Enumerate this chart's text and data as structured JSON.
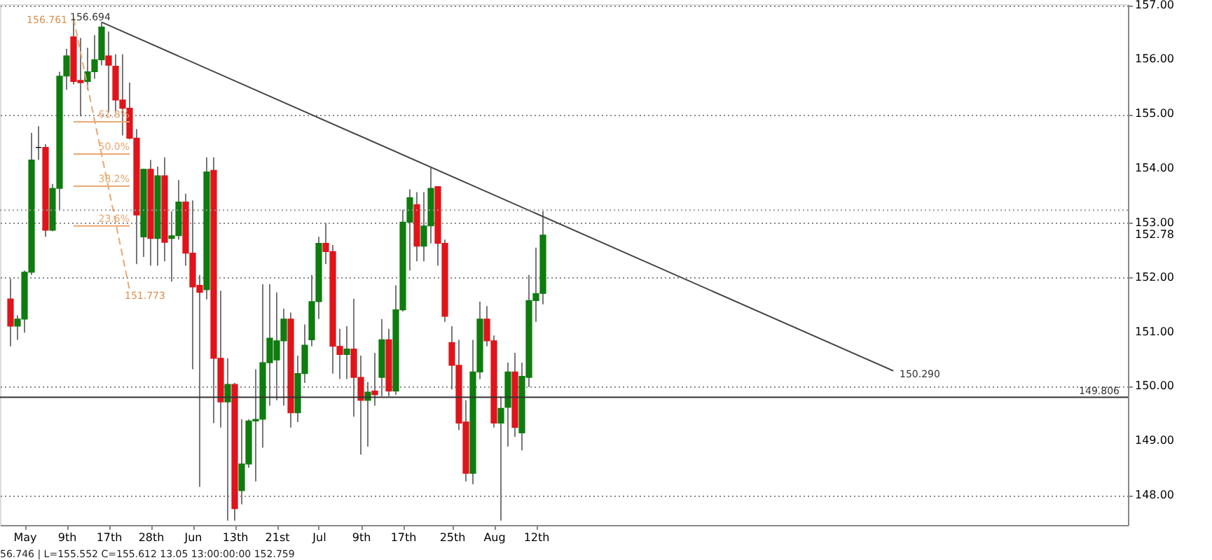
{
  "chart_data": {
    "type": "candlestick",
    "categories": [
      null,
      null,
      "May",
      null,
      null,
      null,
      null,
      null,
      "9th",
      null,
      null,
      null,
      null,
      null,
      "17th",
      null,
      null,
      null,
      null,
      null,
      "28th",
      null,
      null,
      null,
      null,
      null,
      "Jun",
      null,
      null,
      null,
      null,
      null,
      "13th",
      null,
      null,
      null,
      null,
      null,
      "21st",
      null,
      null,
      null,
      null,
      null,
      "Jul",
      null,
      null,
      null,
      null,
      null,
      "9th",
      null,
      null,
      null,
      null,
      null,
      "17th",
      null,
      null,
      null,
      null,
      null,
      null,
      "25th",
      null,
      null,
      null,
      null,
      null,
      "Aug",
      null,
      null,
      null,
      null,
      null,
      "12th",
      null,
      null,
      null,
      null,
      null,
      null,
      null,
      null,
      null,
      null,
      null,
      null,
      null,
      null,
      null,
      null,
      null,
      null,
      null,
      null,
      null,
      null,
      null,
      null,
      null,
      null,
      null,
      null,
      null,
      null,
      null,
      null,
      null,
      null,
      null,
      null,
      null,
      null,
      null,
      null,
      null,
      null,
      null,
      null,
      null,
      null,
      null,
      null,
      null,
      null,
      null,
      null,
      null,
      null,
      null,
      null,
      null,
      null,
      null,
      null,
      null,
      null,
      null,
      null,
      null,
      null,
      null,
      null,
      null,
      null,
      null,
      null,
      null,
      null,
      null,
      null,
      null,
      null,
      null,
      null,
      null,
      null,
      null
    ],
    "ohlc": [
      [
        151.61,
        151.98,
        150.74,
        151.11
      ],
      [
        151.11,
        151.31,
        150.86,
        151.24
      ],
      [
        151.24,
        152.13,
        150.99,
        152.1
      ],
      [
        152.1,
        154.66,
        152.05,
        154.16
      ],
      [
        154.39,
        154.78,
        154.16,
        154.39
      ],
      [
        154.39,
        154.45,
        152.75,
        152.87
      ],
      [
        152.87,
        153.72,
        152.85,
        153.64
      ],
      [
        153.64,
        155.78,
        153.25,
        155.7
      ],
      [
        155.7,
        156.2,
        155.45,
        156.07
      ],
      [
        156.42,
        156.76,
        155.55,
        155.6
      ],
      [
        155.62,
        156.4,
        154.96,
        155.58
      ],
      [
        155.6,
        156.22,
        155.45,
        155.78
      ],
      [
        155.78,
        156.45,
        155.65,
        156.0
      ],
      [
        156.0,
        156.69,
        155.9,
        156.6
      ],
      [
        156.07,
        156.52,
        155.03,
        155.9
      ],
      [
        155.88,
        156.1,
        155.03,
        155.26
      ],
      [
        155.26,
        156.1,
        154.61,
        155.11
      ],
      [
        155.11,
        155.58,
        154.54,
        154.56
      ],
      [
        154.56,
        154.73,
        152.25,
        153.15
      ],
      [
        152.75,
        154.0,
        152.38,
        153.99
      ],
      [
        153.99,
        154.16,
        152.22,
        152.72
      ],
      [
        152.72,
        154.04,
        152.22,
        153.87
      ],
      [
        153.87,
        154.21,
        152.3,
        152.65
      ],
      [
        152.72,
        153.22,
        151.93,
        152.77
      ],
      [
        152.77,
        153.79,
        152.7,
        153.39
      ],
      [
        153.39,
        153.54,
        152.22,
        152.45
      ],
      [
        152.45,
        153.42,
        150.32,
        151.83
      ],
      [
        151.86,
        152.05,
        148.16,
        151.73
      ],
      [
        151.78,
        154.21,
        151.6,
        153.94
      ],
      [
        153.97,
        154.21,
        149.33,
        150.52
      ],
      [
        150.52,
        151.76,
        149.25,
        149.72
      ],
      [
        149.72,
        150.52,
        147.54,
        150.04
      ],
      [
        150.04,
        150.07,
        147.54,
        147.76
      ],
      [
        148.09,
        149.4,
        147.84,
        148.58
      ],
      [
        148.58,
        149.4,
        148.51,
        149.37
      ],
      [
        149.37,
        150.32,
        148.26,
        149.4
      ],
      [
        149.4,
        151.88,
        148.88,
        150.44
      ],
      [
        150.44,
        151.88,
        149.65,
        150.89
      ],
      [
        150.49,
        151.73,
        149.75,
        150.84
      ],
      [
        150.84,
        151.43,
        149.65,
        151.24
      ],
      [
        151.24,
        151.36,
        149.25,
        149.52
      ],
      [
        149.52,
        150.57,
        149.35,
        150.24
      ],
      [
        150.24,
        151.14,
        150.07,
        150.76
      ],
      [
        150.86,
        152.05,
        150.74,
        151.56
      ],
      [
        151.56,
        152.75,
        151.24,
        152.63
      ],
      [
        152.63,
        153.0,
        152.25,
        152.48
      ],
      [
        152.48,
        152.6,
        150.24,
        150.74
      ],
      [
        150.74,
        151.06,
        150.14,
        150.59
      ],
      [
        150.59,
        151.11,
        150.14,
        150.69
      ],
      [
        150.69,
        151.61,
        149.45,
        150.17
      ],
      [
        150.17,
        150.57,
        148.75,
        149.75
      ],
      [
        149.75,
        150.08,
        148.9,
        149.9
      ],
      [
        149.92,
        150.62,
        149.65,
        149.85
      ],
      [
        150.17,
        151.24,
        149.82,
        150.86
      ],
      [
        150.86,
        151.06,
        149.82,
        149.92
      ],
      [
        149.92,
        151.86,
        149.85,
        151.41
      ],
      [
        151.41,
        153.25,
        151.38,
        153.02
      ],
      [
        153.02,
        153.62,
        152.13,
        153.47
      ],
      [
        153.34,
        153.57,
        152.3,
        152.58
      ],
      [
        152.58,
        153.57,
        152.3,
        152.95
      ],
      [
        152.95,
        154.02,
        152.63,
        153.64
      ],
      [
        153.67,
        153.67,
        152.22,
        152.63
      ],
      [
        152.63,
        152.7,
        151.19,
        151.29
      ],
      [
        150.81,
        151.11,
        149.95,
        150.39
      ],
      [
        150.39,
        150.86,
        149.2,
        149.33
      ],
      [
        149.35,
        149.75,
        148.26,
        148.41
      ],
      [
        148.41,
        150.86,
        148.21,
        150.27
      ],
      [
        150.27,
        151.56,
        150.14,
        151.24
      ],
      [
        151.24,
        151.48,
        150.74,
        150.84
      ],
      [
        150.84,
        150.94,
        149.25,
        149.33
      ],
      [
        149.33,
        149.82,
        147.54,
        149.6
      ],
      [
        149.62,
        150.44,
        148.9,
        150.27
      ],
      [
        150.27,
        150.62,
        149.08,
        149.25
      ],
      [
        149.15,
        150.44,
        148.83,
        150.19
      ],
      [
        150.17,
        152.05,
        149.99,
        151.58
      ],
      [
        151.58,
        152.55,
        151.19,
        151.71
      ],
      [
        151.71,
        153.22,
        151.51,
        152.78
      ],
      null,
      null,
      null,
      null,
      null,
      null,
      null,
      null,
      null,
      null,
      null,
      null,
      null,
      null,
      null,
      null,
      null,
      null,
      null,
      null,
      null,
      null,
      null,
      null,
      null,
      null,
      null,
      null,
      null,
      null,
      null,
      null,
      null,
      null,
      null,
      null,
      null,
      null,
      null,
      null,
      null,
      null,
      null,
      null,
      null,
      null,
      null,
      null,
      null,
      null,
      null,
      null,
      null,
      null,
      null,
      null,
      null,
      null,
      null,
      null,
      null,
      null,
      null,
      null,
      null,
      null,
      null,
      null,
      null,
      null,
      null,
      null,
      null,
      null,
      null,
      null,
      null,
      null,
      null,
      null,
      null,
      null
    ],
    "colors": [
      "#e0141a",
      "#0e7c0e",
      "#0e7c0e",
      "#0e7c0e",
      "#000000",
      "#e0141a",
      "#0e7c0e",
      "#0e7c0e",
      "#0e7c0e",
      "#e0141a",
      "#e0141a",
      "#0e7c0e",
      "#0e7c0e",
      "#0e7c0e",
      "#e0141a",
      "#e0141a",
      "#e0141a",
      "#e0141a",
      "#e0141a",
      "#0e7c0e",
      "#e0141a",
      "#0e7c0e",
      "#e0141a",
      "#0e7c0e",
      "#0e7c0e",
      "#e0141a",
      "#e0141a",
      "#e0141a",
      "#0e7c0e",
      "#e0141a",
      "#e0141a",
      "#0e7c0e",
      "#e0141a",
      "#0e7c0e",
      "#0e7c0e",
      "#0e7c0e",
      "#0e7c0e",
      "#0e7c0e",
      "#0e7c0e",
      "#0e7c0e",
      "#e0141a",
      "#0e7c0e",
      "#0e7c0e",
      "#0e7c0e",
      "#0e7c0e",
      "#e0141a",
      "#e0141a",
      "#e0141a",
      "#0e7c0e",
      "#e0141a",
      "#e0141a",
      "#0e7c0e",
      "#e0141a",
      "#0e7c0e",
      "#e0141a",
      "#0e7c0e",
      "#0e7c0e",
      "#0e7c0e",
      "#e0141a",
      "#0e7c0e",
      "#0e7c0e",
      "#e0141a",
      "#e0141a",
      "#e0141a",
      "#e0141a",
      "#e0141a",
      "#0e7c0e",
      "#0e7c0e",
      "#e0141a",
      "#e0141a",
      "#0e7c0e",
      "#0e7c0e",
      "#e0141a",
      "#0e7c0e",
      "#0e7c0e",
      "#0e7c0e",
      "#0e7c0e",
      null,
      null,
      null,
      null,
      null,
      null,
      null,
      null,
      null,
      null,
      null,
      null,
      null,
      null,
      null,
      null,
      null,
      null,
      null,
      null,
      null,
      null,
      null,
      null,
      null,
      null,
      null,
      null,
      null,
      null,
      null,
      null,
      null,
      null,
      null,
      null,
      null,
      null,
      null,
      null,
      null,
      null,
      null,
      null,
      null,
      null,
      null,
      null,
      null,
      null,
      null,
      null,
      null,
      null,
      null,
      null,
      null,
      null,
      null,
      null,
      null,
      null,
      null,
      null,
      null,
      null,
      null,
      null,
      null,
      null,
      null,
      null,
      null,
      null,
      null,
      null,
      null,
      null,
      null,
      null,
      null,
      null
    ],
    "series": [
      {
        "type": "line",
        "color": "#444444",
        "line_style": "solid",
        "values": [
          null,
          null,
          null,
          null,
          null,
          null,
          null,
          null,
          null,
          null,
          null,
          null,
          null,
          156.69,
          null,
          null,
          null,
          null,
          null,
          null,
          null,
          null,
          null,
          null,
          null,
          null,
          null,
          null,
          null,
          null,
          null,
          null,
          null,
          null,
          null,
          null,
          null,
          null,
          null,
          null,
          null,
          null,
          null,
          null,
          null,
          null,
          null,
          null,
          null,
          null,
          null,
          null,
          null,
          null,
          null,
          null,
          null,
          null,
          null,
          null,
          null,
          null,
          null,
          null,
          null,
          null,
          null,
          null,
          null,
          null,
          null,
          null,
          null,
          null,
          null,
          null,
          null,
          null,
          null,
          null,
          null,
          null,
          null,
          null,
          null,
          null,
          null,
          null,
          null,
          null,
          null,
          null,
          null,
          null,
          null,
          null,
          null,
          null,
          null,
          null,
          null,
          null,
          null,
          null,
          null,
          null,
          null,
          null,
          null,
          null,
          null,
          null,
          null,
          null,
          null,
          null,
          null,
          null,
          null,
          null,
          null,
          null,
          null,
          null,
          null,
          null,
          150.29,
          null,
          null,
          null,
          null,
          null,
          null,
          null,
          null,
          null,
          null,
          null,
          null,
          null,
          null,
          null,
          null,
          null,
          null,
          null,
          null,
          null,
          null,
          null,
          null,
          null,
          null,
          null,
          null,
          null,
          null,
          null,
          null
        ]
      },
      {
        "type": "line",
        "color": "#e8a870",
        "line_style": "dashed",
        "values": [
          null,
          null,
          null,
          null,
          null,
          null,
          null,
          null,
          null,
          156.76,
          null,
          null,
          null,
          null,
          null,
          null,
          null,
          151.77,
          null,
          null,
          null,
          null,
          null,
          null,
          null,
          null,
          null,
          null,
          null,
          null,
          null,
          null,
          null,
          null,
          null,
          null,
          null,
          null,
          null,
          null,
          null,
          null,
          null,
          null,
          null,
          null,
          null,
          null,
          null,
          null,
          null,
          null,
          null,
          null,
          null,
          null,
          null,
          null,
          null,
          null,
          null,
          null,
          null,
          null,
          null,
          null,
          null,
          null,
          null,
          null,
          null,
          null,
          null,
          null,
          null,
          null,
          null,
          null,
          null,
          null,
          null,
          null,
          null,
          null,
          null,
          null,
          null,
          null,
          null,
          null,
          null,
          null,
          null,
          null,
          null,
          null,
          null,
          null,
          null,
          null,
          null,
          null,
          null,
          null,
          null,
          null,
          null,
          null,
          null,
          null,
          null,
          null,
          null,
          null,
          null,
          null,
          null,
          null,
          null,
          null,
          null,
          null,
          null,
          null,
          null,
          null,
          null,
          null,
          null,
          null,
          null,
          null,
          null,
          null,
          null,
          null,
          null,
          null,
          null,
          null,
          null,
          null,
          null,
          null,
          null,
          null,
          null,
          null,
          null,
          null,
          null,
          null,
          null,
          null,
          null,
          null,
          null,
          null,
          null
        ]
      },
      {
        "type": "line",
        "name": "61.8%",
        "color": "#e8a870",
        "line_style": "solid",
        "values": [
          null,
          null,
          null,
          null,
          null,
          null,
          null,
          null,
          null,
          154.86,
          null,
          null,
          null,
          null,
          null,
          null,
          null,
          154.86,
          null,
          null,
          null,
          null,
          null,
          null,
          null,
          null,
          null,
          null,
          null,
          null,
          null,
          null,
          null,
          null,
          null,
          null,
          null,
          null,
          null,
          null,
          null,
          null,
          null,
          null,
          null,
          null,
          null,
          null,
          null,
          null,
          null,
          null,
          null,
          null,
          null,
          null,
          null,
          null,
          null,
          null,
          null,
          null,
          null,
          null,
          null,
          null,
          null,
          null,
          null,
          null,
          null,
          null,
          null,
          null,
          null,
          null,
          null,
          null,
          null,
          null,
          null,
          null,
          null,
          null,
          null,
          null,
          null,
          null,
          null,
          null,
          null,
          null,
          null,
          null,
          null,
          null,
          null,
          null,
          null,
          null,
          null,
          null,
          null,
          null,
          null,
          null,
          null,
          null,
          null,
          null,
          null,
          null,
          null,
          null,
          null,
          null,
          null,
          null,
          null,
          null,
          null,
          null,
          null,
          null,
          null,
          null,
          null,
          null,
          null,
          null,
          null,
          null,
          null,
          null,
          null,
          null,
          null,
          null,
          null,
          null,
          null,
          null,
          null,
          null,
          null,
          null,
          null,
          null,
          null,
          null,
          null,
          null,
          null,
          null,
          null,
          null,
          null,
          null,
          null
        ]
      },
      {
        "type": "line",
        "name": "50.0%",
        "color": "#e8a870",
        "line_style": "solid",
        "values": [
          null,
          null,
          null,
          null,
          null,
          null,
          null,
          null,
          null,
          154.27,
          null,
          null,
          null,
          null,
          null,
          null,
          null,
          154.27,
          null,
          null,
          null,
          null,
          null,
          null,
          null,
          null,
          null,
          null,
          null,
          null,
          null,
          null,
          null,
          null,
          null,
          null,
          null,
          null,
          null,
          null,
          null,
          null,
          null,
          null,
          null,
          null,
          null,
          null,
          null,
          null,
          null,
          null,
          null,
          null,
          null,
          null,
          null,
          null,
          null,
          null,
          null,
          null,
          null,
          null,
          null,
          null,
          null,
          null,
          null,
          null,
          null,
          null,
          null,
          null,
          null,
          null,
          null,
          null,
          null,
          null,
          null,
          null,
          null,
          null,
          null,
          null,
          null,
          null,
          null,
          null,
          null,
          null,
          null,
          null,
          null,
          null,
          null,
          null,
          null,
          null,
          null,
          null,
          null,
          null,
          null,
          null,
          null,
          null,
          null,
          null,
          null,
          null,
          null,
          null,
          null,
          null,
          null,
          null,
          null,
          null,
          null,
          null,
          null,
          null,
          null,
          null,
          null,
          null,
          null,
          null,
          null,
          null,
          null,
          null,
          null,
          null,
          null,
          null,
          null,
          null,
          null,
          null,
          null,
          null,
          null,
          null,
          null,
          null,
          null,
          null,
          null,
          null,
          null,
          null,
          null,
          null,
          null,
          null,
          null
        ]
      },
      {
        "type": "line",
        "name": "38.2%",
        "color": "#e8a870",
        "line_style": "solid",
        "values": [
          null,
          null,
          null,
          null,
          null,
          null,
          null,
          null,
          null,
          153.68,
          null,
          null,
          null,
          null,
          null,
          null,
          null,
          153.68,
          null,
          null,
          null,
          null,
          null,
          null,
          null,
          null,
          null,
          null,
          null,
          null,
          null,
          null,
          null,
          null,
          null,
          null,
          null,
          null,
          null,
          null,
          null,
          null,
          null,
          null,
          null,
          null,
          null,
          null,
          null,
          null,
          null,
          null,
          null,
          null,
          null,
          null,
          null,
          null,
          null,
          null,
          null,
          null,
          null,
          null,
          null,
          null,
          null,
          null,
          null,
          null,
          null,
          null,
          null,
          null,
          null,
          null,
          null,
          null,
          null,
          null,
          null,
          null,
          null,
          null,
          null,
          null,
          null,
          null,
          null,
          null,
          null,
          null,
          null,
          null,
          null,
          null,
          null,
          null,
          null,
          null,
          null,
          null,
          null,
          null,
          null,
          null,
          null,
          null,
          null,
          null,
          null,
          null,
          null,
          null,
          null,
          null,
          null,
          null,
          null,
          null,
          null,
          null,
          null,
          null,
          null,
          null,
          null,
          null,
          null,
          null,
          null,
          null,
          null,
          null,
          null,
          null,
          null,
          null,
          null,
          null,
          null,
          null,
          null,
          null,
          null,
          null,
          null,
          null,
          null,
          null,
          null,
          null,
          null,
          null,
          null,
          null,
          null,
          null,
          null
        ]
      },
      {
        "type": "line",
        "name": "23.6%",
        "color": "#e8a870",
        "line_style": "solid",
        "values": [
          null,
          null,
          null,
          null,
          null,
          null,
          null,
          null,
          null,
          152.95,
          null,
          null,
          null,
          null,
          null,
          null,
          null,
          152.95,
          null,
          null,
          null,
          null,
          null,
          null,
          null,
          null,
          null,
          null,
          null,
          null,
          null,
          null,
          null,
          null,
          null,
          null,
          null,
          null,
          null,
          null,
          null,
          null,
          null,
          null,
          null,
          null,
          null,
          null,
          null,
          null,
          null,
          null,
          null,
          null,
          null,
          null,
          null,
          null,
          null,
          null,
          null,
          null,
          null,
          null,
          null,
          null,
          null,
          null,
          null,
          null,
          null,
          null,
          null,
          null,
          null,
          null,
          null,
          null,
          null,
          null,
          null,
          null,
          null,
          null,
          null,
          null,
          null,
          null,
          null,
          null,
          null,
          null,
          null,
          null,
          null,
          null,
          null,
          null,
          null,
          null,
          null,
          null,
          null,
          null,
          null,
          null,
          null,
          null,
          null,
          null,
          null,
          null,
          null,
          null,
          null,
          null,
          null,
          null,
          null,
          null,
          null,
          null,
          null,
          null,
          null,
          null,
          null,
          null,
          null,
          null,
          null,
          null,
          null,
          null,
          null,
          null,
          null,
          null,
          null,
          null,
          null,
          null,
          null,
          null,
          null,
          null,
          null,
          null,
          null,
          null,
          null,
          null,
          null,
          null,
          null,
          null,
          null,
          null,
          null
        ]
      }
    ],
    "ref_lines": [
      {
        "axis": "y",
        "value": 149.806,
        "label": "149.806",
        "color": "#333333",
        "line_style": "solid"
      },
      {
        "axis": "y",
        "value": 153.24,
        "color": "#999999",
        "line_style": "dotted"
      }
    ],
    "annotations": [
      "156.761",
      "156.694",
      "151.773",
      "150.290",
      "56.746 | L=155.552 C=155.612  13.05 13:00:00:00 152.759"
    ],
    "ylim": [
      147.46,
      157.02
    ],
    "yticks": [
      {
        "value": 148,
        "label": "148.00"
      },
      {
        "value": 149,
        "label": "149.00"
      },
      {
        "value": 150,
        "label": "150.00"
      },
      {
        "value": 151,
        "label": "151.00"
      },
      {
        "value": 152,
        "label": "152.00"
      },
      {
        "value": 152.78,
        "label": "152.78"
      },
      {
        "value": 153,
        "label": "153.00"
      },
      {
        "value": 154,
        "label": "154.00"
      },
      {
        "value": 155,
        "label": "155.00"
      },
      {
        "value": 156,
        "label": "156.00"
      },
      {
        "value": 157,
        "label": "157.00"
      }
    ],
    "grid": "y"
  }
}
